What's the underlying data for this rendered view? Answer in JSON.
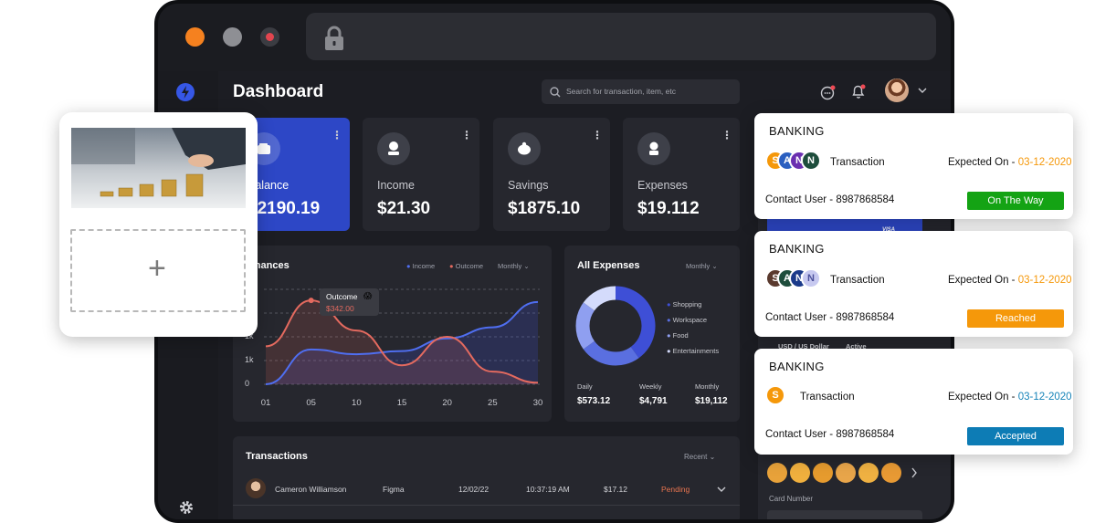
{
  "header": {
    "title": "Dashboard",
    "search_placeholder": "Search for transaction, item, etc"
  },
  "stats": [
    {
      "label": "Balance",
      "value": "$2190.19"
    },
    {
      "label": "Income",
      "value": "$21.30"
    },
    {
      "label": "Savings",
      "value": "$1875.10"
    },
    {
      "label": "Expenses",
      "value": "$19.112"
    }
  ],
  "finances": {
    "title": "Finances",
    "legend_income": "Income",
    "legend_outcome": "Outcome",
    "period": "Monthly",
    "tooltip_label": "Outcome",
    "tooltip_value": "$342.00",
    "y_ticks": [
      "1k",
      "1k",
      "0"
    ],
    "x_ticks": [
      "01",
      "05",
      "10",
      "15",
      "20",
      "25",
      "30"
    ]
  },
  "chart_data": {
    "type": "area",
    "x": [
      "01",
      "05",
      "10",
      "15",
      "20",
      "25",
      "30"
    ],
    "series": [
      {
        "name": "Income",
        "values": [
          0,
          1100,
          950,
          1050,
          1450,
          1800,
          2600
        ]
      },
      {
        "name": "Outcome",
        "values": [
          1200,
          2650,
          1700,
          600,
          1500,
          400,
          50
        ]
      }
    ]
  },
  "expenses": {
    "title": "All Expenses",
    "period": "Monthly",
    "legend": [
      "Shopping",
      "Workspace",
      "Food",
      "Entertainments"
    ],
    "colors": [
      "#3e4fd6",
      "#5a6fe0",
      "#8f9ff0",
      "#d4dbfb"
    ],
    "values": [
      40,
      25,
      20,
      15
    ],
    "summary": [
      {
        "label": "Daily",
        "value": "$573.12"
      },
      {
        "label": "Weekly",
        "value": "$4,791"
      },
      {
        "label": "Monthly",
        "value": "$19,112"
      }
    ]
  },
  "transactions": {
    "title": "Transactions",
    "filter": "Recent",
    "rows": [
      {
        "name": "Cameron Williamson",
        "merchant": "Figma",
        "date": "12/02/22",
        "time": "10:37:19 AM",
        "amount": "$17.12",
        "status": "Pending"
      }
    ]
  },
  "bank_cards": [
    {
      "title": "BANKING",
      "label": "Transaction",
      "expected_prefix": "Expected On -",
      "date": "03-12-2020",
      "date_color": "#f5980a",
      "contact": "Contact User - 8987868584",
      "status": "On The Way",
      "status_bg": "#14a314",
      "status_fg": "#ffffff",
      "avatars": [
        "S",
        "A",
        "N",
        "N"
      ]
    },
    {
      "title": "BANKING",
      "label": "Transaction",
      "expected_prefix": "Expected On -",
      "date": "03-12-2020",
      "date_color": "#f5980a",
      "contact": "Contact User - 8987868584",
      "status": "Reached",
      "status_bg": "#f5980a",
      "status_fg": "#ffffff",
      "avatars": [
        "S",
        "A",
        "N",
        "N"
      ]
    },
    {
      "title": "BANKING",
      "label": "Transaction",
      "expected_prefix": "Expected On -",
      "date": "03-12-2020",
      "date_color": "#1583b8",
      "contact": "Contact User - 8987868584",
      "status": "Accepted",
      "status_bg": "#0d7cb5",
      "status_fg": "#ffffff",
      "avatars": [
        "S"
      ]
    }
  ],
  "right_panel": {
    "currency": "USD / US Dollar",
    "state": "Active",
    "card_number_label": "Card Number",
    "visa": "VISA"
  },
  "upload_card": {
    "add_symbol": "+"
  }
}
